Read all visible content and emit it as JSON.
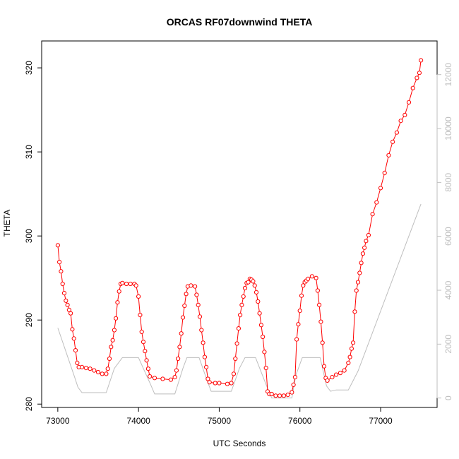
{
  "chart_data": {
    "type": "line",
    "title": "ORCAS RF07downwind THETA",
    "xlabel": "UTC Seconds",
    "ylabel": "THETA",
    "xlim": [
      72800,
      77700
    ],
    "ylim": [
      279.6,
      323.2
    ],
    "y2lim": [
      -350,
      13250
    ],
    "x_ticks": [
      73000,
      74000,
      75000,
      76000,
      77000
    ],
    "y_ticks": [
      280,
      290,
      300,
      310,
      320
    ],
    "y2_ticks": [
      0,
      2000,
      4000,
      6000,
      8000,
      10000,
      12000
    ],
    "grid": false,
    "legend": "none",
    "series": [
      {
        "role": "primary",
        "color": "#ff0000",
        "marker": "open-circle",
        "points": [
          [
            73000,
            298.9
          ],
          [
            73020,
            296.9
          ],
          [
            73040,
            295.8
          ],
          [
            73060,
            294.3
          ],
          [
            73080,
            293.2
          ],
          [
            73100,
            292.3
          ],
          [
            73120,
            291.8
          ],
          [
            73140,
            291.2
          ],
          [
            73160,
            290.8
          ],
          [
            73180,
            288.9
          ],
          [
            73200,
            287.8
          ],
          [
            73220,
            286.4
          ],
          [
            73240,
            284.9
          ],
          [
            73260,
            284.4
          ],
          [
            73300,
            284.4
          ],
          [
            73350,
            284.3
          ],
          [
            73400,
            284.2
          ],
          [
            73450,
            284.0
          ],
          [
            73500,
            283.8
          ],
          [
            73550,
            283.6
          ],
          [
            73600,
            283.6
          ],
          [
            73620,
            284.2
          ],
          [
            73640,
            285.4
          ],
          [
            73660,
            286.8
          ],
          [
            73680,
            287.6
          ],
          [
            73700,
            288.8
          ],
          [
            73720,
            290.2
          ],
          [
            73740,
            292.1
          ],
          [
            73760,
            293.4
          ],
          [
            73780,
            294.3
          ],
          [
            73800,
            294.4
          ],
          [
            73850,
            294.3
          ],
          [
            73900,
            294.3
          ],
          [
            73950,
            294.3
          ],
          [
            73970,
            294.1
          ],
          [
            74000,
            292.8
          ],
          [
            74020,
            290.6
          ],
          [
            74040,
            288.6
          ],
          [
            74060,
            287.4
          ],
          [
            74080,
            286.3
          ],
          [
            74100,
            285.2
          ],
          [
            74120,
            284.2
          ],
          [
            74140,
            283.3
          ],
          [
            74200,
            283.1
          ],
          [
            74300,
            283.0
          ],
          [
            74400,
            282.9
          ],
          [
            74450,
            283.2
          ],
          [
            74470,
            284.0
          ],
          [
            74490,
            285.4
          ],
          [
            74510,
            286.8
          ],
          [
            74530,
            288.4
          ],
          [
            74550,
            290.3
          ],
          [
            74570,
            291.7
          ],
          [
            74590,
            293.1
          ],
          [
            74610,
            294.0
          ],
          [
            74650,
            294.1
          ],
          [
            74700,
            294.0
          ],
          [
            74720,
            293.0
          ],
          [
            74740,
            291.8
          ],
          [
            74760,
            290.4
          ],
          [
            74780,
            288.8
          ],
          [
            74800,
            287.3
          ],
          [
            74820,
            285.6
          ],
          [
            74840,
            284.4
          ],
          [
            74860,
            283.0
          ],
          [
            74880,
            282.6
          ],
          [
            74950,
            282.5
          ],
          [
            75000,
            282.5
          ],
          [
            75100,
            282.4
          ],
          [
            75150,
            282.5
          ],
          [
            75180,
            283.6
          ],
          [
            75200,
            285.4
          ],
          [
            75220,
            287.2
          ],
          [
            75240,
            289.0
          ],
          [
            75260,
            290.6
          ],
          [
            75280,
            291.8
          ],
          [
            75300,
            292.8
          ],
          [
            75320,
            293.8
          ],
          [
            75340,
            294.4
          ],
          [
            75360,
            294.5
          ],
          [
            75380,
            294.9
          ],
          [
            75400,
            294.8
          ],
          [
            75420,
            294.6
          ],
          [
            75440,
            294.1
          ],
          [
            75460,
            293.3
          ],
          [
            75480,
            292.2
          ],
          [
            75500,
            290.8
          ],
          [
            75520,
            289.4
          ],
          [
            75540,
            288.0
          ],
          [
            75560,
            286.2
          ],
          [
            75580,
            284.3
          ],
          [
            75600,
            281.5
          ],
          [
            75620,
            281.2
          ],
          [
            75650,
            281.2
          ],
          [
            75700,
            281.0
          ],
          [
            75750,
            281.0
          ],
          [
            75800,
            281.0
          ],
          [
            75850,
            281.1
          ],
          [
            75900,
            281.4
          ],
          [
            75920,
            282.3
          ],
          [
            75940,
            283.2
          ],
          [
            75960,
            287.7
          ],
          [
            75980,
            289.5
          ],
          [
            76000,
            291.1
          ],
          [
            76020,
            292.9
          ],
          [
            76040,
            294.1
          ],
          [
            76060,
            294.5
          ],
          [
            76080,
            294.7
          ],
          [
            76100,
            294.9
          ],
          [
            76150,
            295.2
          ],
          [
            76200,
            295.0
          ],
          [
            76220,
            293.5
          ],
          [
            76240,
            291.8
          ],
          [
            76260,
            289.8
          ],
          [
            76280,
            287.3
          ],
          [
            76300,
            284.5
          ],
          [
            76320,
            283.1
          ],
          [
            76340,
            282.8
          ],
          [
            76400,
            283.2
          ],
          [
            76450,
            283.5
          ],
          [
            76500,
            283.7
          ],
          [
            76550,
            284.0
          ],
          [
            76600,
            284.9
          ],
          [
            76620,
            285.6
          ],
          [
            76640,
            286.6
          ],
          [
            76660,
            287.3
          ],
          [
            76680,
            291.0
          ],
          [
            76700,
            293.5
          ],
          [
            76720,
            294.5
          ],
          [
            76740,
            295.6
          ],
          [
            76760,
            296.8
          ],
          [
            76780,
            297.9
          ],
          [
            76800,
            298.6
          ],
          [
            76820,
            299.4
          ],
          [
            76850,
            300.1
          ],
          [
            76900,
            302.6
          ],
          [
            76950,
            304.0
          ],
          [
            77000,
            305.7
          ],
          [
            77050,
            307.5
          ],
          [
            77100,
            309.6
          ],
          [
            77150,
            311.2
          ],
          [
            77200,
            312.3
          ],
          [
            77250,
            313.7
          ],
          [
            77300,
            314.4
          ],
          [
            77350,
            315.9
          ],
          [
            77400,
            317.6
          ],
          [
            77450,
            318.8
          ],
          [
            77480,
            319.4
          ],
          [
            77500,
            320.9
          ]
        ]
      },
      {
        "role": "secondary",
        "axis": "right",
        "color": "#bebebe",
        "points": [
          [
            73000,
            2600
          ],
          [
            73200,
            850
          ],
          [
            73250,
            400
          ],
          [
            73300,
            200
          ],
          [
            73600,
            200
          ],
          [
            73700,
            1100
          ],
          [
            73800,
            1500
          ],
          [
            74000,
            1500
          ],
          [
            74150,
            500
          ],
          [
            74200,
            150
          ],
          [
            74450,
            150
          ],
          [
            74550,
            1100
          ],
          [
            74600,
            1500
          ],
          [
            74750,
            1500
          ],
          [
            74850,
            650
          ],
          [
            74900,
            250
          ],
          [
            75150,
            250
          ],
          [
            75250,
            1100
          ],
          [
            75320,
            1500
          ],
          [
            75450,
            1500
          ],
          [
            75600,
            350
          ],
          [
            75650,
            0
          ],
          [
            75900,
            0
          ],
          [
            75950,
            850
          ],
          [
            76030,
            1500
          ],
          [
            76250,
            1500
          ],
          [
            76330,
            450
          ],
          [
            76380,
            250
          ],
          [
            76450,
            300
          ],
          [
            76600,
            300
          ],
          [
            76720,
            1000
          ],
          [
            77500,
            7200
          ]
        ]
      }
    ]
  }
}
